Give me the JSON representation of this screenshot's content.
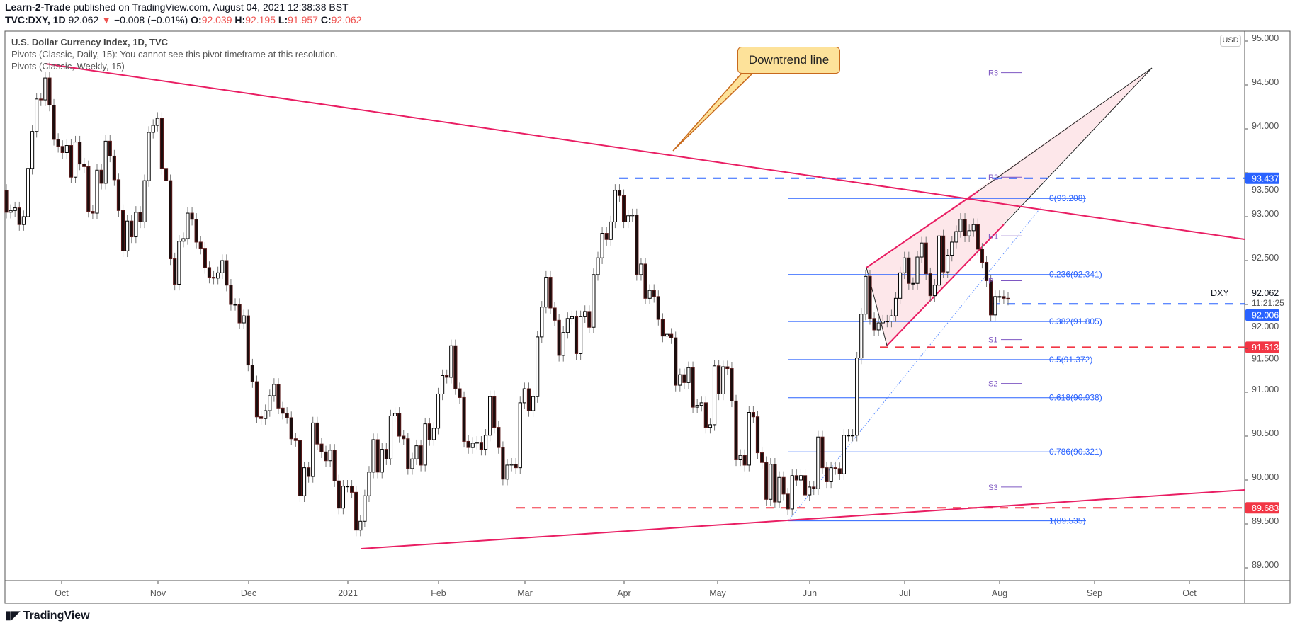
{
  "header": {
    "publisher": "Learn-2-Trade",
    "published_text": "published on TradingView.com, August 04, 2021 12:38:38 BST",
    "symbol": "TVC:DXY, 1D",
    "last": "92.062",
    "change": "−0.008 (−0.01%)",
    "o_label": "O:",
    "o": "92.039",
    "h_label": "H:",
    "h": "92.195",
    "l_label": "L:",
    "l": "91.957",
    "c_label": "C:",
    "c": "92.062"
  },
  "legend": {
    "title": "U.S. Dollar Currency Index, 1D, TVC",
    "pivots_daily": "Pivots (Classic, Daily, 15): You cannot see this pivot timeframe at this resolution.",
    "pivots_weekly": "Pivots (Classic, Weekly, 15)"
  },
  "callout": {
    "text": "Downtrend line",
    "fill": "#fde29a",
    "border": "#c8691c"
  },
  "currency_button": "USD",
  "price_axis": {
    "ticks": [
      "95.000",
      "94.500",
      "94.000",
      "93.500",
      "93.000",
      "92.500",
      "92.000",
      "91.500",
      "91.000",
      "90.500",
      "90.000",
      "89.500",
      "89.000"
    ],
    "symbol_label": "DXY",
    "last_price": "92.062",
    "countdown": "11:21:25",
    "badges": [
      {
        "value": "93.437",
        "color": "#2962ff"
      },
      {
        "value": "92.006",
        "color": "#2962ff"
      },
      {
        "value": "91.513",
        "color": "#f23645"
      },
      {
        "value": "89.683",
        "color": "#f23645"
      }
    ]
  },
  "fibonacci": [
    {
      "label": "0(93.208)",
      "price": 93.208
    },
    {
      "label": "0.236(92.341)",
      "price": 92.341
    },
    {
      "label": "0.382(91.805)",
      "price": 91.805
    },
    {
      "label": "0.5(91.372)",
      "price": 91.372
    },
    {
      "label": "0.618(90.938)",
      "price": 90.938
    },
    {
      "label": "0.786(90.321)",
      "price": 90.321
    },
    {
      "label": "1(89.535)",
      "price": 89.535
    }
  ],
  "pivots": [
    {
      "label": "R3",
      "price": 94.64
    },
    {
      "label": "R2",
      "price": 93.45
    },
    {
      "label": "R1",
      "price": 92.78
    },
    {
      "label": "P",
      "price": 92.27
    },
    {
      "label": "S1",
      "price": 91.6
    },
    {
      "label": "S2",
      "price": 91.1
    },
    {
      "label": "S3",
      "price": 89.92
    }
  ],
  "colors": {
    "up_body": "#ffffff",
    "down_body": "#1a0d0d",
    "trendline": "#e91e63",
    "wedge_fill": "#fde4e8",
    "fib": "#2962ff",
    "pivot": "#7e57c2"
  },
  "time_axis": [
    "Oct",
    "Nov",
    "Dec",
    "2021",
    "Feb",
    "Mar",
    "Apr",
    "May",
    "Jun",
    "Jul",
    "Aug",
    "Sep",
    "Oct"
  ],
  "logo": "TradingView",
  "chart_data": {
    "type": "candlestick",
    "title": "U.S. Dollar Currency Index, 1D, TVC",
    "interval": "1D",
    "ylim": [
      88.8,
      95.1
    ],
    "x_range": "Sep 2020 – Aug 4 2021",
    "first_open": 93.3,
    "closes": [
      93.05,
      93.07,
      93.1,
      92.91,
      93.0,
      93.55,
      93.97,
      94.34,
      94.33,
      94.58,
      94.27,
      93.88,
      93.8,
      93.73,
      93.81,
      93.45,
      93.85,
      93.6,
      93.57,
      93.06,
      93.04,
      93.53,
      93.38,
      93.86,
      93.69,
      93.42,
      93.07,
      92.61,
      92.95,
      92.77,
      93.05,
      92.94,
      93.41,
      93.96,
      94.04,
      94.12,
      93.55,
      93.41,
      92.52,
      92.23,
      92.72,
      92.75,
      93.04,
      92.97,
      92.71,
      92.64,
      92.42,
      92.31,
      92.3,
      92.36,
      92.5,
      92.22,
      92.0,
      92.0,
      91.79,
      91.87,
      91.31,
      91.12,
      90.72,
      90.7,
      90.79,
      90.96,
      91.09,
      90.82,
      90.76,
      90.71,
      90.47,
      90.45,
      89.82,
      90.14,
      90.04,
      90.65,
      90.41,
      90.32,
      90.22,
      90.34,
      89.99,
      89.68,
      89.93,
      89.93,
      89.86,
      89.43,
      89.53,
      89.82,
      90.09,
      90.46,
      90.09,
      90.35,
      90.24,
      90.73,
      90.76,
      90.5,
      90.47,
      90.13,
      90.24,
      90.39,
      90.17,
      90.64,
      90.46,
      90.59,
      90.98,
      91.19,
      91.17,
      91.53,
      91.04,
      90.94,
      90.44,
      90.37,
      90.42,
      90.43,
      90.35,
      90.51,
      90.95,
      90.6,
      90.37,
      90.01,
      90.17,
      90.18,
      90.14,
      90.88,
      91.04,
      90.79,
      90.95,
      91.63,
      91.97,
      92.31,
      91.96,
      91.82,
      91.42,
      91.68,
      91.84,
      91.86,
      91.44,
      91.86,
      91.92,
      91.74,
      92.34,
      92.53,
      92.81,
      92.74,
      92.94,
      93.3,
      93.24,
      92.94,
      93.01,
      93.02,
      92.34,
      92.46,
      92.07,
      92.16,
      92.09,
      91.83,
      91.64,
      91.66,
      91.62,
      91.08,
      91.2,
      91.11,
      91.28,
      90.83,
      90.85,
      90.88,
      90.6,
      90.63,
      91.3,
      90.98,
      91.29,
      91.27,
      90.9,
      90.23,
      90.28,
      90.17,
      90.77,
      90.72,
      90.31,
      90.2,
      89.78,
      90.18,
      89.75,
      90.03,
      89.84,
      89.67,
      90.05,
      90.0,
      90.05,
      89.83,
      89.92,
      89.9,
      90.49,
      90.14,
      89.98,
      90.14,
      90.13,
      90.07,
      90.51,
      90.51,
      90.51,
      91.39,
      91.89,
      92.32,
      91.84,
      91.71,
      91.79,
      91.81,
      91.81,
      91.87,
      92.07,
      92.36,
      92.53,
      92.24,
      92.24,
      92.54,
      92.7,
      92.35,
      92.1,
      92.22,
      92.78,
      92.37,
      92.56,
      92.71,
      92.83,
      92.97,
      92.78,
      92.84,
      92.91,
      92.63,
      92.48,
      92.27,
      91.88,
      92.09,
      92.09,
      92.07,
      92.06
    ],
    "horizontal_levels": [
      93.437,
      92.006,
      91.513,
      89.683
    ],
    "grid": false
  }
}
